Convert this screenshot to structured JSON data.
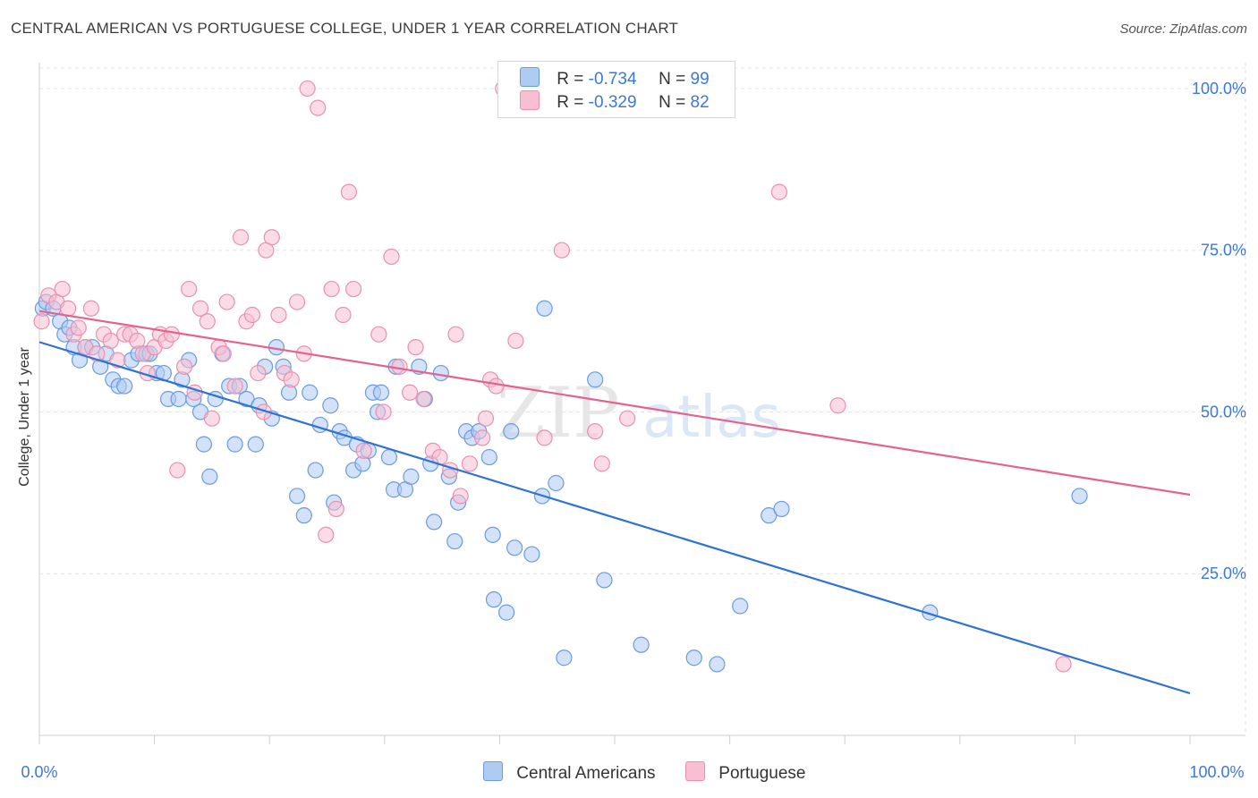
{
  "title": "CENTRAL AMERICAN VS PORTUGUESE COLLEGE, UNDER 1 YEAR CORRELATION CHART",
  "source": "Source: ZipAtlas.com",
  "watermark": {
    "zip": "ZIP",
    "atlas": "atlas"
  },
  "legend": {
    "r_label": "R =",
    "n_label": "N =",
    "rows": [
      {
        "series": "Central Americans",
        "r": "-0.734",
        "n": "99"
      },
      {
        "series": "Portuguese",
        "r": "-0.329",
        "n": "82"
      }
    ]
  },
  "colors": {
    "blue_fill": "#aecbf2",
    "blue_stroke": "#6a9be0",
    "blue_line": "#2f72d6",
    "pink_fill": "#f7bfd1",
    "pink_stroke": "#ea8fb0",
    "pink_line": "#e4628e",
    "grid": "#e4e4e4",
    "tick_text": "#3b78d8"
  },
  "chart_data": {
    "type": "scatter",
    "xlabel": "",
    "ylabel": "College, Under 1 year",
    "xlim": [
      0,
      100
    ],
    "ylim": [
      0,
      104
    ],
    "x_tick_labels": [
      "0.0%",
      "100.0%"
    ],
    "y_ticks": [
      25,
      50,
      75,
      100
    ],
    "y_tick_labels": [
      "25.0%",
      "50.0%",
      "75.0%",
      "100.0%"
    ],
    "grid": true,
    "legend_position": "top-center",
    "series": [
      {
        "name": "Central Americans",
        "trend": [
          [
            0,
            60.8
          ],
          [
            100,
            6.5
          ]
        ],
        "points": [
          [
            0.3,
            66
          ],
          [
            0.6,
            67
          ],
          [
            1.2,
            66
          ],
          [
            1.8,
            64
          ],
          [
            2.2,
            62
          ],
          [
            2.6,
            63
          ],
          [
            3,
            60
          ],
          [
            3.5,
            58
          ],
          [
            4,
            60
          ],
          [
            4.6,
            60
          ],
          [
            5.3,
            57
          ],
          [
            5.8,
            59
          ],
          [
            6.4,
            55
          ],
          [
            6.9,
            54
          ],
          [
            7.4,
            54
          ],
          [
            8,
            58
          ],
          [
            8.6,
            59
          ],
          [
            9.3,
            59
          ],
          [
            9.6,
            59
          ],
          [
            10.2,
            56
          ],
          [
            10.8,
            56
          ],
          [
            11.2,
            52
          ],
          [
            12.1,
            52
          ],
          [
            12.4,
            55
          ],
          [
            13,
            58
          ],
          [
            13.4,
            52
          ],
          [
            14,
            50
          ],
          [
            14.3,
            45
          ],
          [
            14.8,
            40
          ],
          [
            15.3,
            52
          ],
          [
            15.9,
            59
          ],
          [
            16.5,
            54
          ],
          [
            17,
            45
          ],
          [
            17.4,
            54
          ],
          [
            18,
            52
          ],
          [
            18.8,
            45
          ],
          [
            19.1,
            51
          ],
          [
            19.6,
            57
          ],
          [
            20.2,
            49
          ],
          [
            20.6,
            60
          ],
          [
            21.2,
            57
          ],
          [
            21.7,
            53
          ],
          [
            22.4,
            37
          ],
          [
            23,
            34
          ],
          [
            23.5,
            53
          ],
          [
            24,
            41
          ],
          [
            24.4,
            48
          ],
          [
            25.3,
            51
          ],
          [
            25.6,
            36
          ],
          [
            26.1,
            47
          ],
          [
            26.5,
            46
          ],
          [
            27.3,
            41
          ],
          [
            27.6,
            45
          ],
          [
            28.1,
            42
          ],
          [
            28.6,
            44
          ],
          [
            29,
            53
          ],
          [
            29.4,
            50
          ],
          [
            29.7,
            53
          ],
          [
            30.4,
            43
          ],
          [
            30.8,
            38
          ],
          [
            31,
            57
          ],
          [
            31.8,
            38
          ],
          [
            32.3,
            40
          ],
          [
            33,
            57
          ],
          [
            33.5,
            52
          ],
          [
            34,
            42
          ],
          [
            34.3,
            33
          ],
          [
            34.9,
            56
          ],
          [
            35.6,
            40
          ],
          [
            36.1,
            30
          ],
          [
            36.4,
            36
          ],
          [
            37.1,
            47
          ],
          [
            37.6,
            46
          ],
          [
            38.2,
            47
          ],
          [
            39.1,
            43
          ],
          [
            39.4,
            31
          ],
          [
            39.5,
            21
          ],
          [
            40.6,
            19
          ],
          [
            41,
            47
          ],
          [
            41.3,
            29
          ],
          [
            42.8,
            28
          ],
          [
            43.7,
            37
          ],
          [
            43.9,
            66
          ],
          [
            44.9,
            39
          ],
          [
            45.6,
            12
          ],
          [
            48.3,
            55
          ],
          [
            49.1,
            24
          ],
          [
            52.3,
            14
          ],
          [
            56.9,
            12
          ],
          [
            58.9,
            11
          ],
          [
            60.9,
            20
          ],
          [
            63.4,
            34
          ],
          [
            64.5,
            35
          ],
          [
            77.4,
            19
          ],
          [
            90.4,
            37
          ]
        ]
      },
      {
        "name": "Portuguese",
        "trend": [
          [
            0,
            65.6
          ],
          [
            100,
            37.2
          ]
        ],
        "points": [
          [
            0.2,
            64
          ],
          [
            0.8,
            68
          ],
          [
            1.5,
            67
          ],
          [
            2,
            69
          ],
          [
            2.5,
            66
          ],
          [
            3,
            62
          ],
          [
            3.4,
            63
          ],
          [
            4,
            60
          ],
          [
            4.5,
            66
          ],
          [
            5,
            59
          ],
          [
            5.6,
            62
          ],
          [
            6.2,
            61
          ],
          [
            6.8,
            58
          ],
          [
            7.4,
            62
          ],
          [
            7.9,
            62
          ],
          [
            8.5,
            61
          ],
          [
            9,
            59
          ],
          [
            9.4,
            56
          ],
          [
            10,
            60
          ],
          [
            10.5,
            62
          ],
          [
            11,
            61
          ],
          [
            11.5,
            62
          ],
          [
            12,
            41
          ],
          [
            12.6,
            57
          ],
          [
            13,
            69
          ],
          [
            13.5,
            53
          ],
          [
            14,
            66
          ],
          [
            14.6,
            64
          ],
          [
            15,
            49
          ],
          [
            15.6,
            60
          ],
          [
            16,
            59
          ],
          [
            16.3,
            67
          ],
          [
            17,
            54
          ],
          [
            17.5,
            77
          ],
          [
            18,
            64
          ],
          [
            18.5,
            65
          ],
          [
            19,
            56
          ],
          [
            19.5,
            50
          ],
          [
            19.7,
            75
          ],
          [
            20.2,
            77
          ],
          [
            20.8,
            65
          ],
          [
            21.3,
            56
          ],
          [
            21.9,
            55
          ],
          [
            22.4,
            67
          ],
          [
            23,
            59
          ],
          [
            23.3,
            100
          ],
          [
            24.2,
            97
          ],
          [
            24.9,
            31
          ],
          [
            25.4,
            69
          ],
          [
            25.8,
            35
          ],
          [
            26.4,
            65
          ],
          [
            26.9,
            84
          ],
          [
            27.3,
            69
          ],
          [
            28.2,
            44
          ],
          [
            29.5,
            62
          ],
          [
            29.9,
            50
          ],
          [
            30.6,
            74
          ],
          [
            31.3,
            57
          ],
          [
            32.2,
            53
          ],
          [
            32.7,
            60
          ],
          [
            33.4,
            52
          ],
          [
            34.2,
            44
          ],
          [
            34.8,
            43
          ],
          [
            35.7,
            41
          ],
          [
            36.2,
            62
          ],
          [
            36.6,
            37
          ],
          [
            37.4,
            42
          ],
          [
            38.5,
            46
          ],
          [
            38.8,
            49
          ],
          [
            39.2,
            55
          ],
          [
            39.7,
            54
          ],
          [
            40.3,
            100
          ],
          [
            41.4,
            61
          ],
          [
            43.9,
            46
          ],
          [
            45.4,
            75
          ],
          [
            48.3,
            47
          ],
          [
            48.9,
            42
          ],
          [
            51.1,
            49
          ],
          [
            64.3,
            84
          ],
          [
            69.4,
            51
          ],
          [
            89,
            11
          ]
        ]
      }
    ]
  }
}
